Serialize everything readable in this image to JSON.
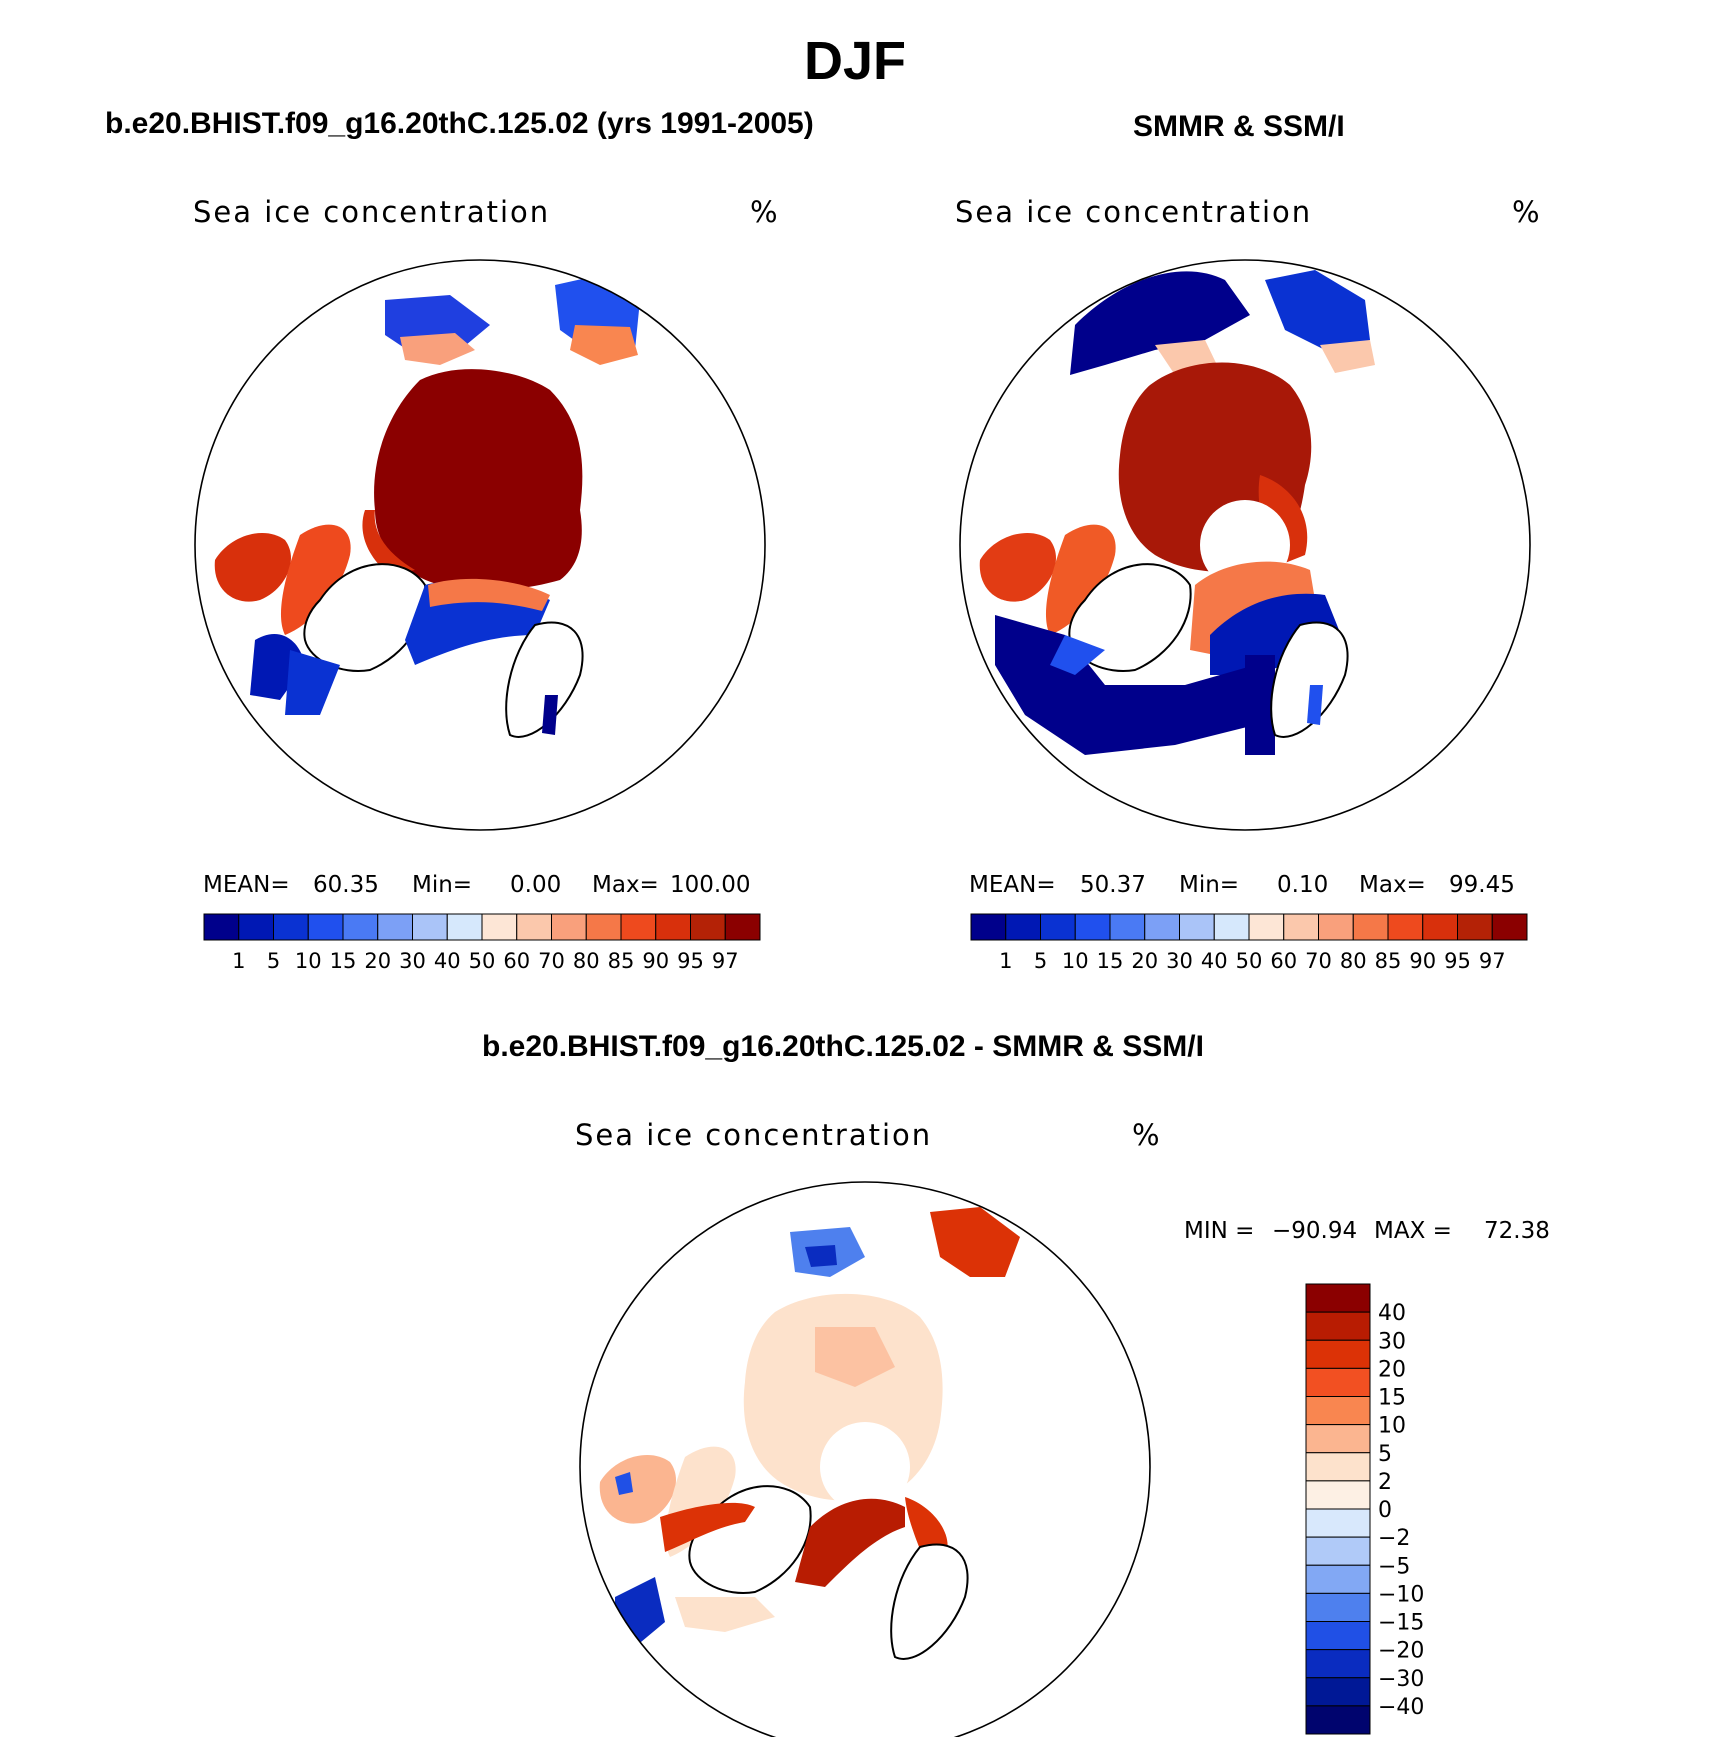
{
  "figure_title": "DJF",
  "panels": [
    {
      "title": "b.e20.BHIST.f09_g16.20thC.125.02 (yrs 1991-2005)",
      "variable": "Sea ice concentration",
      "units": "%",
      "stats": {
        "mean_label": "MEAN=",
        "mean": "60.35",
        "min_label": "Min=",
        "min": "0.00",
        "max_label": "Max=",
        "max": "100.00"
      }
    },
    {
      "title": "SMMR & SSM/I",
      "variable": "Sea ice concentration",
      "units": "%",
      "stats": {
        "mean_label": "MEAN=",
        "mean": "50.37",
        "min_label": "Min=",
        "min": "0.10",
        "max_label": "Max=",
        "max": "99.45"
      }
    },
    {
      "title": "b.e20.BHIST.f09_g16.20thC.125.02 - SMMR & SSM/I",
      "variable": "Sea ice concentration",
      "units": "%",
      "stats": {
        "min_label": "MIN =",
        "min": "−90.94",
        "max_label": "MAX =",
        "max": "72.38"
      }
    }
  ],
  "chart_data": [
    {
      "type": "heatmap",
      "projection": "north polar stereographic",
      "title": "b.e20.BHIST.f09_g16.20thC.125.02 (yrs 1991-2005)",
      "variable": "Sea ice concentration",
      "units": "%",
      "mean": 60.35,
      "min": 0.0,
      "max": 100.0,
      "colorbar": {
        "orientation": "horizontal",
        "levels": [
          1,
          5,
          10,
          15,
          20,
          30,
          40,
          50,
          60,
          70,
          80,
          85,
          90,
          95,
          97
        ],
        "colors": [
          "#00008b",
          "#0018b4",
          "#0a32d2",
          "#2050ee",
          "#4a7af4",
          "#7ca0f6",
          "#aac4f8",
          "#d6e8fc",
          "#fde6d6",
          "#fbc8ac",
          "#f9a07c",
          "#f57848",
          "#ee4a1e",
          "#d8300c",
          "#b42206",
          "#8b0000"
        ]
      }
    },
    {
      "type": "heatmap",
      "projection": "north polar stereographic",
      "title": "SMMR & SSM/I",
      "variable": "Sea ice concentration",
      "units": "%",
      "mean": 50.37,
      "min": 0.1,
      "max": 99.45,
      "colorbar": {
        "orientation": "horizontal",
        "levels": [
          1,
          5,
          10,
          15,
          20,
          30,
          40,
          50,
          60,
          70,
          80,
          85,
          90,
          95,
          97
        ],
        "colors": [
          "#00008b",
          "#0018b4",
          "#0a32d2",
          "#2050ee",
          "#4a7af4",
          "#7ca0f6",
          "#aac4f8",
          "#d6e8fc",
          "#fde6d6",
          "#fbc8ac",
          "#f9a07c",
          "#f57848",
          "#ee4a1e",
          "#d8300c",
          "#b42206",
          "#8b0000"
        ]
      }
    },
    {
      "type": "heatmap",
      "projection": "north polar stereographic",
      "title": "b.e20.BHIST.f09_g16.20thC.125.02 - SMMR & SSM/I",
      "variable": "Sea ice concentration",
      "units": "%",
      "min": -90.94,
      "max": 72.38,
      "colorbar": {
        "orientation": "vertical",
        "levels": [
          40,
          30,
          20,
          15,
          10,
          5,
          2,
          0,
          -2,
          -5,
          -10,
          -15,
          -20,
          -30,
          -40
        ],
        "level_labels": [
          "40",
          "30",
          "20",
          "15",
          "10",
          "5",
          "2",
          "0",
          "−2",
          "−5",
          "−10",
          "−15",
          "−20",
          "−30",
          "−40"
        ],
        "colors": [
          "#8b0000",
          "#b81c02",
          "#dc3206",
          "#f25022",
          "#f98650",
          "#fbb590",
          "#fde2cc",
          "#fdf0e4",
          "#d8e8fc",
          "#b0caf8",
          "#82a8f4",
          "#4e80ee",
          "#2050e6",
          "#0a2cc0",
          "#001896",
          "#00046e"
        ]
      }
    }
  ]
}
